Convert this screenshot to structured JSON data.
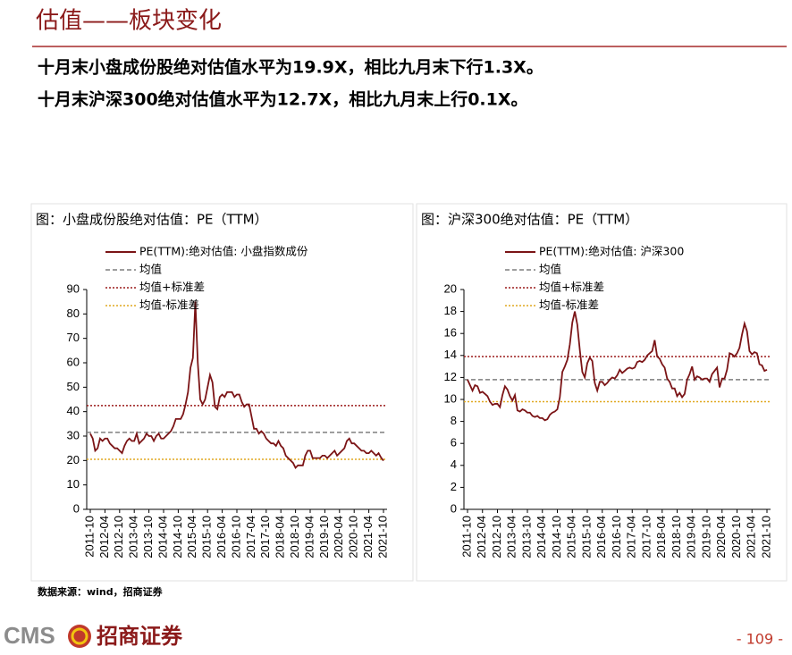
{
  "header": {
    "title": "估值——板块变化"
  },
  "bullets": [
    "十月末小盘成份股绝对估值水平为19.9X，相比九月末下行1.3X。",
    "十月末沪深300绝对估值水平为12.7X，相比九月末上行0.1X。"
  ],
  "chart_data": [
    {
      "type": "line",
      "title": "图：小盘成份股绝对估值：PE（TTM）",
      "categories": [
        "2011-10",
        null,
        null,
        null,
        null,
        null,
        "2012-04",
        null,
        null,
        null,
        null,
        null,
        "2012-10",
        null,
        null,
        null,
        null,
        null,
        "2013-04",
        null,
        null,
        null,
        null,
        null,
        "2013-10",
        null,
        null,
        null,
        null,
        null,
        "2014-04",
        null,
        null,
        null,
        null,
        null,
        "2014-10",
        null,
        null,
        null,
        null,
        null,
        "2015-04",
        null,
        null,
        null,
        null,
        null,
        "2015-10",
        null,
        null,
        null,
        null,
        null,
        "2016-04",
        null,
        null,
        null,
        null,
        null,
        "2016-10",
        null,
        null,
        null,
        null,
        null,
        "2017-04",
        null,
        null,
        null,
        null,
        null,
        "2017-10",
        null,
        null,
        null,
        null,
        null,
        "2018-04",
        null,
        null,
        null,
        null,
        null,
        "2018-10",
        null,
        null,
        null,
        null,
        null,
        "2019-04",
        null,
        null,
        null,
        null,
        null,
        "2019-10",
        null,
        null,
        null,
        null,
        null,
        "2020-04",
        null,
        null,
        null,
        null,
        null,
        "2020-10",
        null,
        null,
        null,
        null,
        null,
        "2021-04",
        null,
        null,
        null,
        null,
        null,
        "2021-10"
      ],
      "series": [
        {
          "name": "PE(TTM):绝对估值: 小盘指数成份",
          "color": "#7b1416",
          "values": [
            31,
            29,
            24,
            25,
            29,
            28,
            29,
            29,
            27,
            26,
            25,
            25,
            24,
            23,
            26,
            28,
            29,
            28,
            28,
            31,
            27,
            28,
            29,
            31,
            30,
            30,
            28,
            30,
            31,
            29,
            29,
            30,
            31,
            32,
            34,
            37,
            37,
            37,
            39,
            43,
            48,
            58,
            62,
            85,
            60,
            45,
            43,
            45,
            50,
            55,
            52,
            42,
            41,
            46,
            47,
            46,
            48,
            48,
            48,
            46,
            47,
            47,
            44,
            42,
            43,
            43,
            38,
            33,
            33,
            31,
            32,
            31,
            29,
            28,
            27,
            27,
            26,
            28,
            26,
            25,
            22,
            21,
            20,
            19,
            17,
            18,
            18,
            18,
            22,
            24,
            24,
            21,
            21,
            21,
            21,
            22,
            22,
            21,
            22,
            23,
            24,
            22,
            23,
            24,
            25,
            28,
            29,
            27,
            27,
            26,
            25,
            24,
            24,
            23,
            23,
            24,
            23,
            22,
            23,
            21.2,
            19.9
          ]
        }
      ],
      "reference_lines": [
        {
          "name": "均值",
          "value": 31.5,
          "color": "#7f7f7f",
          "style": "dashed"
        },
        {
          "name": "均值+标准差",
          "value": 42.5,
          "color": "#9b1b1b",
          "style": "dotted"
        },
        {
          "name": "均值-标准差",
          "value": 20.5,
          "color": "#e0a820",
          "style": "dotted"
        }
      ],
      "ylim": [
        0,
        90
      ],
      "yticks": [
        0,
        10,
        20,
        30,
        40,
        50,
        60,
        70,
        80,
        90
      ],
      "grid": false,
      "legend": "top-left"
    },
    {
      "type": "line",
      "title": "图：沪深300绝对估值：PE（TTM）",
      "categories": [
        "2011-10",
        null,
        null,
        null,
        null,
        null,
        "2012-04",
        null,
        null,
        null,
        null,
        null,
        "2012-10",
        null,
        null,
        null,
        null,
        null,
        "2013-04",
        null,
        null,
        null,
        null,
        null,
        "2013-10",
        null,
        null,
        null,
        null,
        null,
        "2014-04",
        null,
        null,
        null,
        null,
        null,
        "2014-10",
        null,
        null,
        null,
        null,
        null,
        "2015-04",
        null,
        null,
        null,
        null,
        null,
        "2015-10",
        null,
        null,
        null,
        null,
        null,
        "2016-04",
        null,
        null,
        null,
        null,
        null,
        "2016-10",
        null,
        null,
        null,
        null,
        null,
        "2017-04",
        null,
        null,
        null,
        null,
        null,
        "2017-10",
        null,
        null,
        null,
        null,
        null,
        "2018-04",
        null,
        null,
        null,
        null,
        null,
        "2018-10",
        null,
        null,
        null,
        null,
        null,
        "2019-04",
        null,
        null,
        null,
        null,
        null,
        "2019-10",
        null,
        null,
        null,
        null,
        null,
        "2020-04",
        null,
        null,
        null,
        null,
        null,
        "2020-10",
        null,
        null,
        null,
        null,
        null,
        "2021-04",
        null,
        null,
        null,
        null,
        null,
        "2021-10"
      ],
      "series": [
        {
          "name": "PE(TTM):绝对估值: 沪深300",
          "color": "#7b1416",
          "values": [
            11.8,
            11.3,
            10.8,
            11.3,
            11.2,
            10.6,
            10.7,
            10.5,
            10.3,
            9.8,
            9.5,
            9.6,
            9.6,
            9.3,
            10.4,
            11.2,
            10.9,
            10.3,
            9.9,
            10.4,
            9.0,
            8.9,
            9.1,
            9.0,
            8.8,
            8.8,
            8.5,
            8.4,
            8.5,
            8.3,
            8.3,
            8.1,
            8.2,
            8.6,
            8.8,
            8.9,
            9.1,
            10.2,
            12.5,
            13.0,
            13.6,
            15.0,
            17.0,
            18.0,
            16.8,
            14.5,
            12.5,
            12.0,
            13.3,
            13.8,
            13.5,
            11.5,
            10.8,
            11.6,
            11.6,
            11.3,
            11.5,
            11.8,
            12.0,
            11.9,
            12.2,
            12.7,
            12.4,
            12.6,
            12.8,
            12.9,
            12.8,
            12.9,
            13.4,
            13.5,
            13.4,
            13.6,
            14.0,
            14.2,
            14.4,
            15.4,
            13.9,
            13.7,
            13.2,
            12.9,
            11.9,
            11.6,
            11.0,
            11.0,
            10.3,
            10.6,
            10.2,
            10.5,
            11.8,
            12.3,
            13.0,
            11.8,
            12.1,
            12.0,
            11.8,
            11.9,
            11.9,
            11.6,
            12.3,
            12.6,
            12.9,
            11.1,
            11.9,
            11.9,
            12.7,
            14.2,
            14.1,
            13.9,
            14.2,
            14.7,
            15.9,
            16.9,
            16.2,
            14.4,
            14.1,
            14.3,
            14.2,
            13.2,
            13.1,
            12.6,
            12.7
          ]
        }
      ],
      "reference_lines": [
        {
          "name": "均值",
          "value": 11.8,
          "color": "#7f7f7f",
          "style": "dashed"
        },
        {
          "name": "均值+标准差",
          "value": 13.9,
          "color": "#9b1b1b",
          "style": "dotted"
        },
        {
          "name": "均值-标准差",
          "value": 9.8,
          "color": "#e0a820",
          "style": "dotted"
        }
      ],
      "ylim": [
        0,
        20
      ],
      "yticks": [
        0,
        2,
        4,
        6,
        8,
        10,
        12,
        14,
        16,
        18,
        20
      ],
      "grid": false,
      "legend": "top-left"
    }
  ],
  "source": "数据来源：wind，招商证券",
  "logo": {
    "latin": "CMS",
    "chinese": "招商证券"
  },
  "page_number": "- 109 -"
}
